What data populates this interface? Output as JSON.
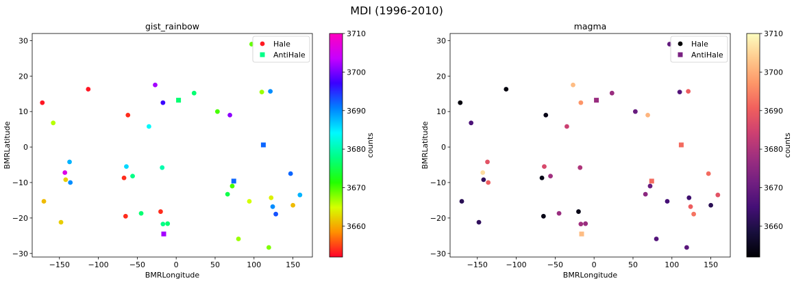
{
  "figure": {
    "suptitle": "MDI (1996-2010)"
  },
  "chart_data": [
    {
      "type": "scatter",
      "title": "gist_rainbow",
      "colormap": "gist_rainbow",
      "xlabel": "BMRLongitude",
      "ylabel": "BMRLatitude",
      "xlim": [
        -185,
        175
      ],
      "ylim": [
        -31,
        32
      ],
      "xticks": [
        -150,
        -100,
        -50,
        0,
        50,
        100,
        150
      ],
      "yticks": [
        -30,
        -20,
        -10,
        0,
        10,
        20,
        30
      ],
      "colorbar": {
        "label": "counts",
        "min": 3652,
        "max": 3710,
        "ticks": [
          3660,
          3670,
          3680,
          3690,
          3700,
          3710
        ]
      },
      "legend": {
        "loc": "upper right",
        "entries": [
          "Hale",
          "AntiHale"
        ]
      }
    },
    {
      "type": "scatter",
      "title": "magma",
      "colormap": "magma",
      "xlabel": "BMRLongitude",
      "ylabel": "BMRLatitude",
      "xlim": [
        -185,
        175
      ],
      "ylim": [
        -31,
        32
      ],
      "xticks": [
        -150,
        -100,
        -50,
        0,
        50,
        100,
        150
      ],
      "yticks": [
        -30,
        -20,
        -10,
        0,
        10,
        20,
        30
      ],
      "colorbar": {
        "label": "counts",
        "min": 3652,
        "max": 3710,
        "ticks": [
          3660,
          3670,
          3680,
          3690,
          3700,
          3710
        ]
      },
      "legend": {
        "loc": "upper right",
        "entries": [
          "Hale",
          "AntiHale"
        ]
      }
    }
  ],
  "series": {
    "hale": [
      {
        "x": -172,
        "y": 12.5,
        "c": 3653
      },
      {
        "x": -113,
        "y": 16.3,
        "c": 3653
      },
      {
        "x": -62,
        "y": 9.0,
        "c": 3654
      },
      {
        "x": -158,
        "y": 6.8,
        "c": 3666
      },
      {
        "x": -27,
        "y": 17.5,
        "c": 3702
      },
      {
        "x": -17,
        "y": 12.5,
        "c": 3697
      },
      {
        "x": 23,
        "y": 15.2,
        "c": 3677
      },
      {
        "x": 53,
        "y": 10.0,
        "c": 3670
      },
      {
        "x": 69,
        "y": 9.0,
        "c": 3701
      },
      {
        "x": 97,
        "y": 29.0,
        "c": 3669
      },
      {
        "x": 110,
        "y": 15.5,
        "c": 3667
      },
      {
        "x": 121,
        "y": 15.7,
        "c": 3690
      },
      {
        "x": -35,
        "y": 5.8,
        "c": 3684
      },
      {
        "x": -137,
        "y": -4.2,
        "c": 3688
      },
      {
        "x": -143,
        "y": -7.2,
        "c": 3706
      },
      {
        "x": -64,
        "y": -5.5,
        "c": 3686
      },
      {
        "x": -67,
        "y": -8.7,
        "c": 3654
      },
      {
        "x": -56,
        "y": -8.2,
        "c": 3678
      },
      {
        "x": -18,
        "y": -5.8,
        "c": 3680
      },
      {
        "x": -142,
        "y": -9.2,
        "c": 3662
      },
      {
        "x": -136,
        "y": -10.0,
        "c": 3690
      },
      {
        "x": 147,
        "y": -7.5,
        "c": 3692
      },
      {
        "x": 72,
        "y": -11.0,
        "c": 3670
      },
      {
        "x": 66,
        "y": -13.3,
        "c": 3675
      },
      {
        "x": 94,
        "y": -15.3,
        "c": 3665
      },
      {
        "x": 122,
        "y": -14.3,
        "c": 3664
      },
      {
        "x": 159,
        "y": -13.5,
        "c": 3688
      },
      {
        "x": -170,
        "y": -15.3,
        "c": 3661
      },
      {
        "x": 124,
        "y": -16.8,
        "c": 3690
      },
      {
        "x": 150,
        "y": -16.4,
        "c": 3661
      },
      {
        "x": 128,
        "y": -18.9,
        "c": 3693
      },
      {
        "x": -20,
        "y": -18.2,
        "c": 3654
      },
      {
        "x": -45,
        "y": -18.7,
        "c": 3677
      },
      {
        "x": -65,
        "y": -19.5,
        "c": 3654
      },
      {
        "x": -148,
        "y": -21.2,
        "c": 3662
      },
      {
        "x": -17,
        "y": -21.7,
        "c": 3678
      },
      {
        "x": -11,
        "y": -21.6,
        "c": 3677
      },
      {
        "x": 80,
        "y": -25.9,
        "c": 3667
      },
      {
        "x": 119,
        "y": -28.3,
        "c": 3668
      }
    ],
    "antihale": [
      {
        "x": 3,
        "y": 13.2,
        "c": 3677
      },
      {
        "x": 112,
        "y": 0.6,
        "c": 3692
      },
      {
        "x": 74,
        "y": -9.6,
        "c": 3692
      },
      {
        "x": -16,
        "y": -24.5,
        "c": 3702
      }
    ]
  }
}
